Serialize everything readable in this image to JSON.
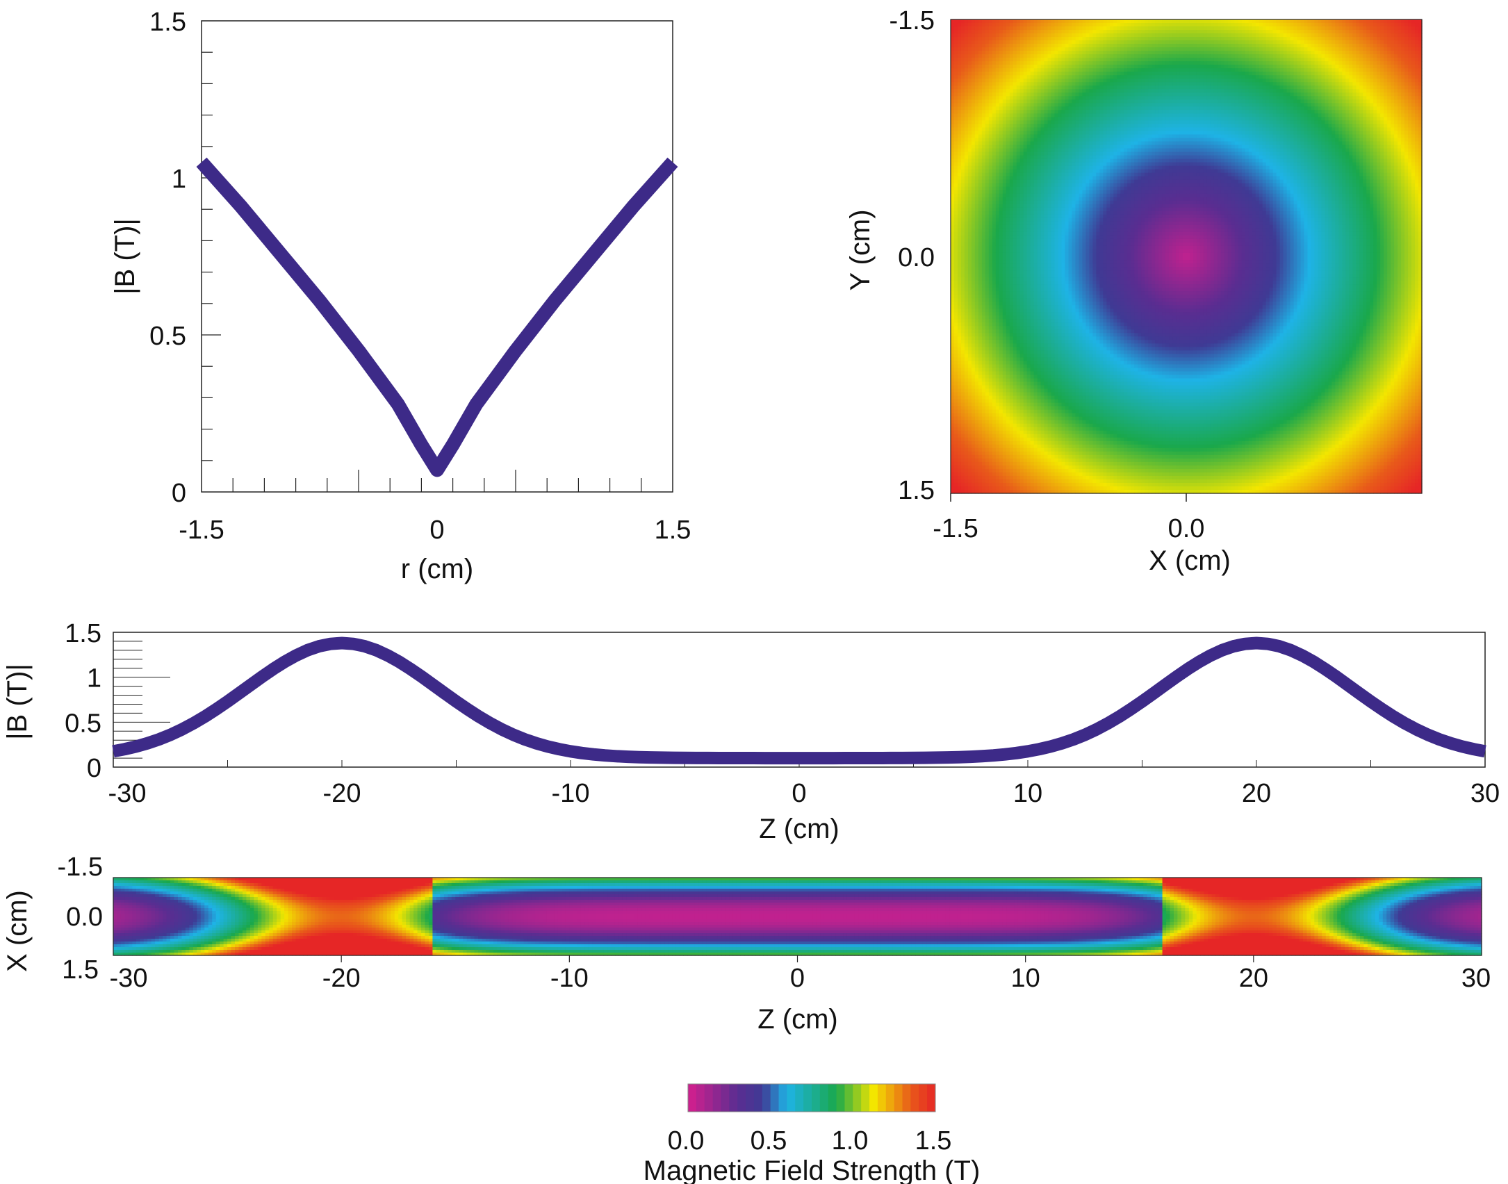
{
  "colors": {
    "curve": "#3d2a88",
    "axis": "#222222",
    "colormap": [
      "#d51f8e",
      "#5a2d91",
      "#3f3a94",
      "#1eb3e6",
      "#1aa84b",
      "#f3e600",
      "#e85a1a",
      "#e62626"
    ]
  },
  "chart_data": [
    {
      "id": "radial-profile",
      "type": "line",
      "title": "",
      "xlabel": "r (cm)",
      "ylabel": "|B (T)|",
      "xlim": [
        -1.5,
        1.5
      ],
      "ylim": [
        0,
        1.5
      ],
      "xticks": [
        "-1.5",
        "0",
        "1.5"
      ],
      "yticks": [
        "0",
        "0.5",
        "1",
        "1.5"
      ],
      "x": [
        -1.5,
        -1.25,
        -1.0,
        -0.75,
        -0.5,
        -0.25,
        -0.1,
        0.0,
        0.1,
        0.25,
        0.5,
        0.75,
        1.0,
        1.25,
        1.5
      ],
      "y": [
        1.05,
        0.91,
        0.76,
        0.61,
        0.45,
        0.28,
        0.15,
        0.07,
        0.15,
        0.28,
        0.45,
        0.61,
        0.76,
        0.91,
        1.05
      ]
    },
    {
      "id": "xy-map",
      "type": "heatmap",
      "title": "",
      "xlabel": "X (cm)",
      "ylabel": "Y (cm)",
      "xlim": [
        -1.5,
        1.5
      ],
      "ylim": [
        -1.5,
        1.5
      ],
      "xticks": [
        "-1.5",
        "0.0"
      ],
      "yticks": [
        "-1.5",
        "0.0",
        "1.5"
      ],
      "field_model": "radial: |B| increases from about 0.05 T at center to about 1.5 T at corners"
    },
    {
      "id": "axial-profile",
      "type": "line",
      "title": "",
      "xlabel": "Z (cm)",
      "ylabel": "|B (T)|",
      "xlim": [
        -30,
        30
      ],
      "ylim": [
        0,
        1.5
      ],
      "xticks": [
        "-30",
        "-20",
        "-10",
        "0",
        "10",
        "20",
        "30"
      ],
      "yticks": [
        "0",
        "0.5",
        "1",
        "1.5"
      ],
      "x": [
        -30,
        -28,
        -26,
        -24,
        -22,
        -21,
        -20,
        -19,
        -18,
        -16,
        -14,
        -12,
        -10,
        -5,
        0,
        5,
        10,
        12,
        14,
        16,
        18,
        19,
        20,
        21,
        22,
        24,
        26,
        28,
        30
      ],
      "y": [
        0.1,
        0.18,
        0.35,
        0.62,
        1.0,
        1.22,
        1.38,
        1.22,
        1.0,
        0.62,
        0.35,
        0.18,
        0.12,
        0.1,
        0.1,
        0.1,
        0.12,
        0.18,
        0.35,
        0.62,
        1.0,
        1.22,
        1.38,
        1.22,
        1.0,
        0.62,
        0.35,
        0.18,
        0.1
      ]
    },
    {
      "id": "zx-map",
      "type": "heatmap",
      "title": "",
      "xlabel": "Z (cm)",
      "ylabel": "X (cm)",
      "xlim": [
        -30,
        30
      ],
      "ylim": [
        -1.5,
        1.5
      ],
      "xticks": [
        "-30",
        "-20",
        "-10",
        "0",
        "10",
        "20",
        "30"
      ],
      "yticks": [
        "-1.5",
        "0.0",
        "1.5"
      ],
      "field_model": "mirror: |B| peaks near Z = -20 and Z = 20 cm, minimum on axis near Z = 0"
    },
    {
      "id": "colorbar",
      "type": "heatmap",
      "title": "",
      "label": "Magnetic Field Strength (T)",
      "range": [
        0.0,
        1.5
      ],
      "ticks": [
        "0.0",
        "0.5",
        "1.0",
        "1.5"
      ]
    }
  ]
}
